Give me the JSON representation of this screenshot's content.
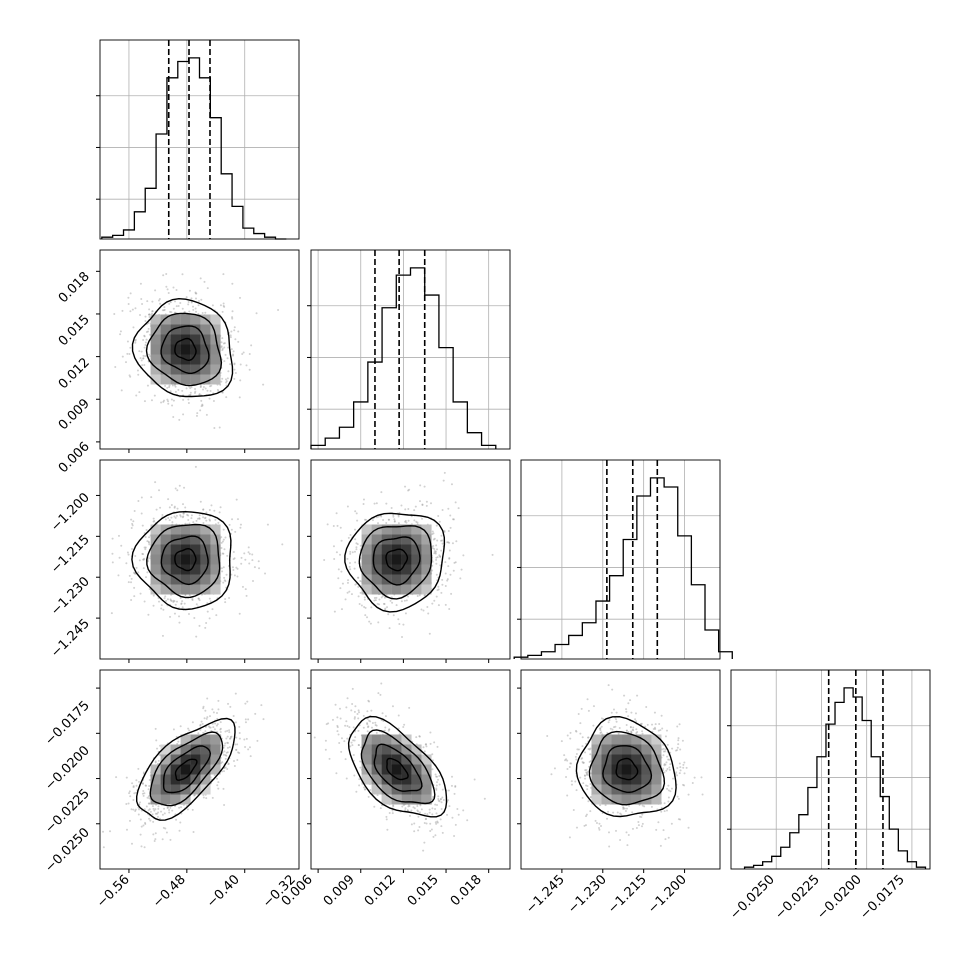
{
  "chart_data": {
    "type": "corner",
    "parameters": 4,
    "panels": [
      {
        "kind": "hist",
        "row": 0,
        "col": 0,
        "param": 0,
        "x": [
          -0.59,
          -0.575,
          -0.56,
          -0.545,
          -0.53,
          -0.515,
          -0.5,
          -0.485,
          -0.47,
          -0.455,
          -0.44,
          -0.425,
          -0.41,
          -0.395,
          -0.38,
          -0.365,
          -0.35
        ],
        "values": [
          1,
          2,
          5,
          15,
          28,
          58,
          89,
          98,
          100,
          89,
          67,
          36,
          18,
          6,
          3,
          1,
          0
        ],
        "quantiles": [
          -0.505,
          -0.477,
          -0.448
        ],
        "xticks": [
          -0.56,
          -0.48,
          -0.4,
          -0.32
        ],
        "xlim": [
          -0.6,
          -0.325
        ]
      },
      {
        "kind": "hist",
        "row": 1,
        "col": 1,
        "param": 1,
        "x": [
          0.006,
          0.007,
          0.008,
          0.009,
          0.01,
          0.011,
          0.012,
          0.013,
          0.014,
          0.015,
          0.016,
          0.017,
          0.018
        ],
        "values": [
          2,
          6,
          12,
          26,
          48,
          78,
          96,
          100,
          85,
          56,
          26,
          9,
          2
        ],
        "quantiles": [
          0.01,
          0.0117,
          0.0135
        ],
        "xticks": [
          0.006,
          0.009,
          0.012,
          0.015,
          0.018
        ],
        "xlim": [
          0.0055,
          0.0195
        ]
      },
      {
        "kind": "hist",
        "row": 2,
        "col": 2,
        "param": 2,
        "x": [
          -1.26,
          -1.255,
          -1.25,
          -1.245,
          -1.24,
          -1.235,
          -1.23,
          -1.225,
          -1.22,
          -1.215,
          -1.21,
          -1.205,
          -1.2,
          -1.195,
          -1.19,
          -1.185
        ],
        "values": [
          1,
          2,
          4,
          8,
          13,
          20,
          32,
          46,
          66,
          90,
          100,
          95,
          68,
          41,
          16,
          4
        ],
        "quantiles": [
          -1.2285,
          -1.219,
          -1.21
        ],
        "xticks": [
          -1.245,
          -1.23,
          -1.215,
          -1.2
        ],
        "xlim": [
          -1.26,
          -1.187
        ]
      },
      {
        "kind": "hist",
        "row": 3,
        "col": 3,
        "param": 3,
        "x": [
          -0.0265,
          -0.026,
          -0.0255,
          -0.025,
          -0.0245,
          -0.024,
          -0.0235,
          -0.023,
          -0.0225,
          -0.022,
          -0.0215,
          -0.021,
          -0.0205,
          -0.02,
          -0.0195,
          -0.019,
          -0.0185,
          -0.018,
          -0.0175,
          -0.017
        ],
        "values": [
          1,
          2,
          4,
          7,
          12,
          20,
          30,
          45,
          62,
          80,
          92,
          100,
          95,
          82,
          62,
          40,
          22,
          10,
          4,
          1
        ],
        "quantiles": [
          -0.0221,
          -0.0206,
          -0.0191
        ],
        "xticks": [
          -0.025,
          -0.0225,
          -0.02,
          -0.0175
        ],
        "xlim": [
          -0.0275,
          -0.0165
        ]
      },
      {
        "kind": "kde2d",
        "row": 1,
        "col": 0,
        "center": [
          -0.48,
          0.0115
        ],
        "corr": -0.1,
        "xticks": [
          -0.56,
          -0.48,
          -0.4,
          -0.32
        ],
        "yticks": [
          0.006,
          0.009,
          0.012,
          0.015,
          0.018
        ]
      },
      {
        "kind": "kde2d",
        "row": 2,
        "col": 0,
        "center": [
          -0.48,
          -1.218
        ],
        "corr": 0.0,
        "xticks": [
          -0.56,
          -0.48,
          -0.4,
          -0.32
        ],
        "yticks": [
          -1.245,
          -1.23,
          -1.215,
          -1.2
        ]
      },
      {
        "kind": "kde2d",
        "row": 2,
        "col": 1,
        "center": [
          0.0117,
          -1.218
        ],
        "corr": 0.05,
        "xticks": [
          0.006,
          0.009,
          0.012,
          0.015,
          0.018
        ],
        "yticks": [
          -1.245,
          -1.23,
          -1.215,
          -1.2
        ]
      },
      {
        "kind": "kde2d",
        "row": 3,
        "col": 0,
        "center": [
          -0.48,
          -0.0205
        ],
        "corr": 0.65,
        "xticks": [
          -0.56,
          -0.48,
          -0.4,
          -0.32
        ],
        "yticks": [
          -0.025,
          -0.0225,
          -0.02,
          -0.0175
        ]
      },
      {
        "kind": "kde2d",
        "row": 3,
        "col": 1,
        "center": [
          0.0115,
          -0.0205
        ],
        "corr": -0.55,
        "xticks": [
          0.006,
          0.009,
          0.012,
          0.015,
          0.018
        ],
        "yticks": [
          -0.025,
          -0.0225,
          -0.02,
          -0.0175
        ]
      },
      {
        "kind": "kde2d",
        "row": 3,
        "col": 2,
        "center": [
          -1.219,
          -0.0206
        ],
        "corr": -0.1,
        "xticks": [
          -1.245,
          -1.23,
          -1.215,
          -1.2
        ],
        "yticks": [
          -0.025,
          -0.0225,
          -0.02,
          -0.0175
        ]
      }
    ],
    "bottom_tick_labels": [
      [
        "−0.56",
        "−0.48",
        "−0.40",
        "−0.32"
      ],
      [
        "0.006",
        "0.009",
        "0.012",
        "0.015",
        "0.018"
      ],
      [
        "−1.245",
        "−1.230",
        "−1.215",
        "−1.200"
      ],
      [
        "−0.0250",
        "−0.0225",
        "−0.0200",
        "−0.0175"
      ]
    ],
    "left_tick_labels": [
      [],
      [
        "0.006",
        "0.009",
        "0.012",
        "0.015",
        "0.018"
      ],
      [
        "−1.245",
        "−1.230",
        "−1.215",
        "−1.200"
      ],
      [
        "−0.0250",
        "−0.0225",
        "−0.0200",
        "−0.0175"
      ]
    ],
    "grid": true,
    "legend": "none"
  }
}
